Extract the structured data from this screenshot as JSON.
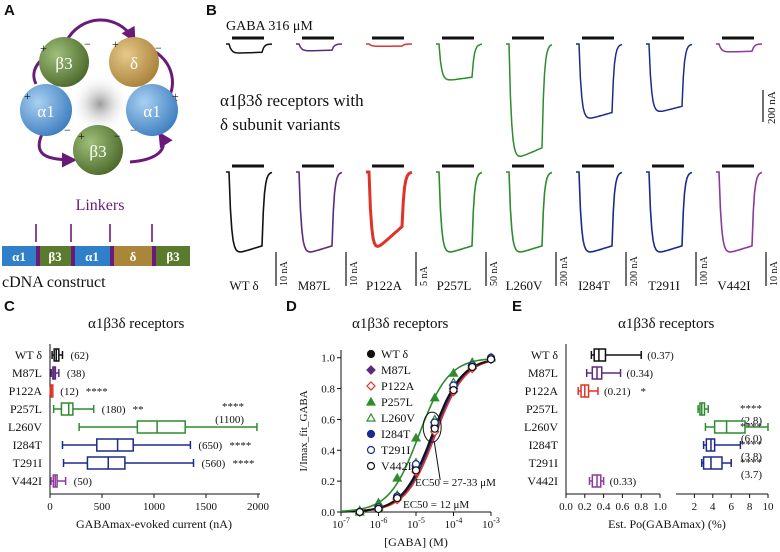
{
  "panels": {
    "a": "A",
    "b": "B",
    "c": "C",
    "d": "D",
    "e": "E"
  },
  "panel_a": {
    "subunits": [
      {
        "label": "β3",
        "color": "#6e8f4a"
      },
      {
        "label": "δ",
        "color": "#c9a45c"
      },
      {
        "label": "α1",
        "color": "#5b9bd5"
      },
      {
        "label": "α1",
        "color": "#5b9bd5"
      },
      {
        "label": "β3",
        "color": "#6e8f4a"
      }
    ],
    "interface_signs": [
      "+",
      "−",
      "+",
      "−",
      "+",
      "−",
      "+",
      "−",
      "+",
      "−"
    ],
    "linkers_label": "Linkers",
    "construct": [
      {
        "label": "α1",
        "color": "#2f80c8"
      },
      {
        "label": "β3",
        "color": "#5a7a2e"
      },
      {
        "label": "α1",
        "color": "#2f80c8"
      },
      {
        "label": "δ",
        "color": "#a9863a"
      },
      {
        "label": "β3",
        "color": "#5a7a2e"
      }
    ],
    "construct_label": "cDNA construct",
    "colors": {
      "linker": "#6a1b7a"
    }
  },
  "panel_b": {
    "stim_label": "GABA 316 μM",
    "description_line1": "α1β3δ receptors with",
    "description_line2": "δ subunit variants",
    "top_scale": "200 nA",
    "variants": [
      {
        "name": "WT δ",
        "color": "#111111",
        "top_amp": 0.08,
        "bottom_scale": "10 nA"
      },
      {
        "name": "M87L",
        "color": "#5b2a7e",
        "top_amp": 0.06,
        "bottom_scale": "10 nA"
      },
      {
        "name": "P122A",
        "color": "#e03228",
        "top_amp": 0.02,
        "bottom_scale": "5 nA"
      },
      {
        "name": "P257L",
        "color": "#2e8b2e",
        "top_amp": 0.32,
        "bottom_scale": "50 nA"
      },
      {
        "name": "L260V",
        "color": "#2e8b2e",
        "top_amp": 1.0,
        "bottom_scale": "200 nA"
      },
      {
        "name": "I284T",
        "color": "#1c2a8c",
        "top_amp": 0.66,
        "bottom_scale": "200 nA"
      },
      {
        "name": "T291I",
        "color": "#1c2a8c",
        "top_amp": 0.6,
        "bottom_scale": "100 nA"
      },
      {
        "name": "V442I",
        "color": "#8a3a9a",
        "top_amp": 0.07,
        "bottom_scale": "10 nA"
      }
    ]
  },
  "chart_data": [
    {
      "type": "boxplot",
      "title": "α1β3δ receptors",
      "xlabel": "GABAmax-evoked current (nA)",
      "xlim": [
        0,
        2000
      ],
      "xticks": [
        0,
        500,
        1000,
        1500,
        2000
      ],
      "categories": [
        "WT δ",
        "M87L",
        "P122A",
        "P257L",
        "L260V",
        "I284T",
        "T291I",
        "V442I"
      ],
      "colors": [
        "#111111",
        "#5b2a7e",
        "#e03228",
        "#2e8b2e",
        "#2e8b2e",
        "#1c2a8c",
        "#1c2a8c",
        "#8a3a9a"
      ],
      "boxes": [
        {
          "min": 20,
          "q1": 40,
          "median": 60,
          "q3": 85,
          "max": 120
        },
        {
          "min": 12,
          "q1": 28,
          "median": 38,
          "q3": 52,
          "max": 85
        },
        {
          "min": 3,
          "q1": 8,
          "median": 12,
          "q3": 16,
          "max": 22
        },
        {
          "min": 35,
          "q1": 110,
          "median": 180,
          "q3": 220,
          "max": 420
        },
        {
          "min": 280,
          "q1": 840,
          "median": 1030,
          "q3": 1300,
          "max": 1990
        },
        {
          "min": 120,
          "q1": 450,
          "median": 650,
          "q3": 800,
          "max": 1350
        },
        {
          "min": 130,
          "q1": 360,
          "median": 560,
          "q3": 720,
          "max": 1380
        },
        {
          "min": 10,
          "q1": 32,
          "median": 50,
          "q3": 68,
          "max": 150
        }
      ],
      "value_labels": [
        "(62)",
        "(38)",
        "(12)",
        "(180)",
        "(1100)",
        "(650)",
        "(560)",
        "(50)"
      ],
      "significance": [
        "",
        "",
        "****",
        "**",
        "****",
        "****",
        "****",
        ""
      ]
    },
    {
      "type": "line",
      "title": "α1β3δ receptors",
      "xlabel": "[GABA] (M)",
      "ylabel": "I/Imax_fit_GABA",
      "x_scale": "log",
      "xlim": [
        1e-07,
        0.001
      ],
      "ylim": [
        0,
        1.05
      ],
      "xticks": [
        "10-7",
        "10-6",
        "10-5",
        "10-4",
        "10-3"
      ],
      "yticks": [
        0,
        0.2,
        0.4,
        0.6,
        0.8,
        1.0
      ],
      "x": [
        3.16e-07,
        1e-06,
        3.16e-06,
        1e-05,
        3.16e-05,
        0.0001,
        0.000316,
        0.001
      ],
      "series": [
        {
          "name": "WT δ",
          "color": "#111111",
          "marker": "circle-filled",
          "values": [
            0.0,
            0.03,
            0.1,
            0.3,
            0.58,
            0.82,
            0.95,
            1.0
          ]
        },
        {
          "name": "M87L",
          "color": "#5b2a7e",
          "marker": "diamond-filled",
          "values": [
            0.0,
            0.02,
            0.09,
            0.28,
            0.55,
            0.8,
            0.94,
            0.99
          ]
        },
        {
          "name": "P122A",
          "color": "#e03228",
          "marker": "diamond-open",
          "values": [
            0.0,
            0.02,
            0.08,
            0.26,
            0.52,
            0.78,
            0.93,
            0.99
          ]
        },
        {
          "name": "P257L",
          "color": "#2e8b2e",
          "marker": "triangle-filled",
          "values": [
            0.01,
            0.06,
            0.22,
            0.48,
            0.74,
            0.9,
            0.97,
            1.0
          ]
        },
        {
          "name": "L260V",
          "color": "#2e8b2e",
          "marker": "triangle-open",
          "values": [
            0.0,
            0.03,
            0.11,
            0.32,
            0.6,
            0.84,
            0.96,
            1.0
          ]
        },
        {
          "name": "I284T",
          "color": "#1c2a8c",
          "marker": "circle-filled",
          "values": [
            0.0,
            0.02,
            0.1,
            0.29,
            0.56,
            0.8,
            0.94,
            0.99
          ]
        },
        {
          "name": "T291I",
          "color": "#1c2a8c",
          "marker": "circle-open",
          "values": [
            0.0,
            0.03,
            0.1,
            0.31,
            0.58,
            0.82,
            0.95,
            1.0
          ]
        },
        {
          "name": "V442I",
          "color": "#111111",
          "marker": "circle-open",
          "values": [
            0.0,
            0.02,
            0.09,
            0.27,
            0.54,
            0.79,
            0.94,
            0.99
          ]
        }
      ],
      "annotations": [
        "EC50 = 27-33 μM",
        "EC50 = 12 μM"
      ]
    },
    {
      "type": "boxplot",
      "title": "α1β3δ receptors",
      "xlabel": "Est. Po(GABAmax) (%)",
      "xlim_left": [
        0,
        1
      ],
      "xticks_left": [
        0.0,
        0.2,
        0.4,
        0.6,
        0.8,
        1.0
      ],
      "xlim_right": [
        0,
        10
      ],
      "xticks_right": [
        2,
        4,
        6,
        8,
        10
      ],
      "categories": [
        "WT δ",
        "M87L",
        "P122A",
        "P257L",
        "L260V",
        "I284T",
        "T291I",
        "V442I"
      ],
      "colors": [
        "#111111",
        "#5b2a7e",
        "#e03228",
        "#2e8b2e",
        "#2e8b2e",
        "#1c2a8c",
        "#1c2a8c",
        "#8a3a9a"
      ],
      "axis_segment": [
        "left",
        "left",
        "left",
        "right",
        "right",
        "right",
        "right",
        "left"
      ],
      "boxes": [
        {
          "min": 0.27,
          "q1": 0.3,
          "median": 0.35,
          "q3": 0.42,
          "max": 0.8
        },
        {
          "min": 0.22,
          "q1": 0.28,
          "median": 0.33,
          "q3": 0.38,
          "max": 0.58
        },
        {
          "min": 0.13,
          "q1": 0.16,
          "median": 0.2,
          "q3": 0.24,
          "max": 0.34
        },
        {
          "min": 2.4,
          "q1": 2.6,
          "median": 2.8,
          "q3": 3.1,
          "max": 3.5
        },
        {
          "min": 3.2,
          "q1": 4.2,
          "median": 5.5,
          "q3": 7.5,
          "max": 10.0
        },
        {
          "min": 3.0,
          "q1": 3.3,
          "median": 3.8,
          "q3": 4.2,
          "max": 7.0
        },
        {
          "min": 2.8,
          "q1": 3.0,
          "median": 3.8,
          "q3": 5.0,
          "max": 6.0
        },
        {
          "min": 0.25,
          "q1": 0.28,
          "median": 0.33,
          "q3": 0.37,
          "max": 0.4
        }
      ],
      "value_labels": [
        "(0.37)",
        "(0.34)",
        "(0.21)",
        "(2.8)",
        "(6.0)",
        "(3.8)",
        "(3.7)",
        "(0.33)"
      ],
      "significance": [
        "",
        "",
        "*",
        "****",
        "****",
        "****",
        "****",
        ""
      ]
    }
  ]
}
